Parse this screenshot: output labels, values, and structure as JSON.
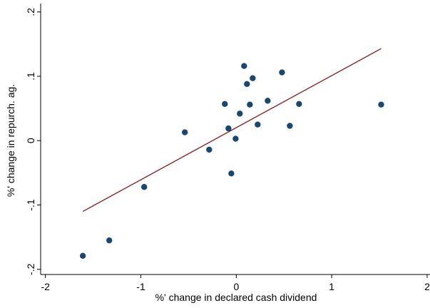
{
  "chart_data": {
    "type": "scatter",
    "xlabel": "%' change in declared cash dividend",
    "ylabel": "%' change in repurch. ag.",
    "x": [
      -1.608,
      -1.331,
      -0.965,
      -0.539,
      -0.284,
      -0.12,
      -0.082,
      -0.052,
      -0.007,
      0.037,
      0.082,
      0.112,
      0.142,
      0.172,
      0.224,
      0.329,
      0.479,
      0.561,
      0.658,
      1.518
    ],
    "values": [
      -0.179,
      -0.155,
      -0.072,
      0.013,
      -0.014,
      0.057,
      0.019,
      -0.051,
      0.003,
      0.042,
      0.116,
      0.088,
      0.056,
      0.097,
      0.025,
      0.062,
      0.106,
      0.023,
      0.057,
      0.056
    ],
    "color": "#1a476f",
    "fit": {
      "x": [
        -1.608,
        1.518
      ],
      "y": [
        -0.11,
        0.143
      ],
      "color": "#8b1a1a"
    },
    "xlim": [
      -2.05,
      2.03
    ],
    "xticks": [
      -2,
      -1,
      0,
      1,
      2
    ],
    "ylim": [
      -0.208,
      0.213
    ],
    "yticks": [
      {
        "value": -0.2,
        "label": "-.2"
      },
      {
        "value": -0.1,
        "label": "-.1"
      },
      0,
      {
        "value": 0.1,
        "label": ".1"
      },
      {
        "value": 0.2,
        "label": ".2"
      }
    ]
  }
}
